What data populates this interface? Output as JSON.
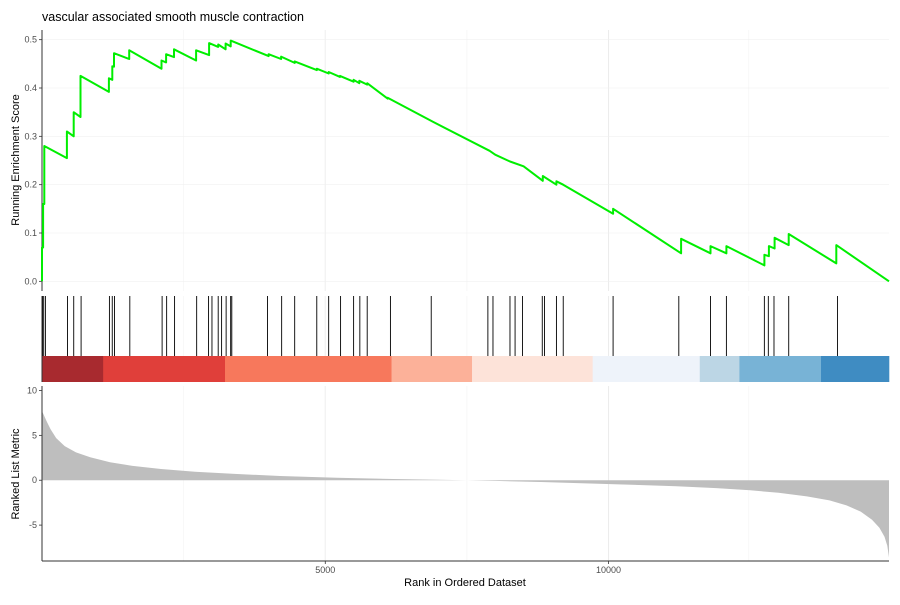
{
  "chart_data": {
    "type": "line",
    "title": "vascular associated smooth muscle contraction",
    "xlabel": "Rank in Ordered Dataset",
    "xlim": [
      0,
      14950
    ],
    "x_ticks": [
      {
        "value": 5000,
        "label": "5000"
      },
      {
        "value": 10000,
        "label": "10000"
      }
    ],
    "grid": "vertical",
    "panels": [
      {
        "name": "enrichment",
        "ylabel": "Running Enrichment Score",
        "ylim": [
          -0.02,
          0.52
        ],
        "y_ticks": [
          {
            "value": 0.0,
            "label": "0.0"
          },
          {
            "value": 0.1,
            "label": "0.1"
          },
          {
            "value": 0.2,
            "label": "0.2"
          },
          {
            "value": 0.3,
            "label": "0.3"
          },
          {
            "value": 0.4,
            "label": "0.4"
          },
          {
            "value": 0.5,
            "label": "0.5"
          }
        ],
        "line_color": "#00ee00",
        "series": [
          {
            "points": [
              [
                0,
                0.0
              ],
              [
                0,
                0.07
              ],
              [
                20,
                0.07
              ],
              [
                20,
                0.16
              ],
              [
                40,
                0.16
              ],
              [
                40,
                0.28
              ],
              [
                440,
                0.255
              ],
              [
                440,
                0.31
              ],
              [
                560,
                0.3
              ],
              [
                560,
                0.35
              ],
              [
                680,
                0.34
              ],
              [
                680,
                0.425
              ],
              [
                1180,
                0.392
              ],
              [
                1180,
                0.42
              ],
              [
                1240,
                0.417
              ],
              [
                1240,
                0.445
              ],
              [
                1270,
                0.444
              ],
              [
                1270,
                0.472
              ],
              [
                1540,
                0.46
              ],
              [
                1540,
                0.478
              ],
              [
                2110,
                0.44
              ],
              [
                2110,
                0.457
              ],
              [
                2190,
                0.453
              ],
              [
                2190,
                0.47
              ],
              [
                2330,
                0.464
              ],
              [
                2330,
                0.48
              ],
              [
                2720,
                0.457
              ],
              [
                2720,
                0.478
              ],
              [
                2950,
                0.468
              ],
              [
                2950,
                0.493
              ],
              [
                3110,
                0.485
              ],
              [
                3110,
                0.49
              ],
              [
                3240,
                0.48
              ],
              [
                3240,
                0.492
              ],
              [
                3330,
                0.486
              ],
              [
                3330,
                0.498
              ],
              [
                4000,
                0.466
              ],
              [
                4000,
                0.47
              ],
              [
                4220,
                0.46
              ],
              [
                4220,
                0.465
              ],
              [
                4460,
                0.452
              ],
              [
                4460,
                0.455
              ],
              [
                4850,
                0.437
              ],
              [
                4850,
                0.44
              ],
              [
                5060,
                0.43
              ],
              [
                5060,
                0.433
              ],
              [
                5260,
                0.423
              ],
              [
                5260,
                0.425
              ],
              [
                5500,
                0.413
              ],
              [
                5500,
                0.417
              ],
              [
                5600,
                0.41
              ],
              [
                5600,
                0.415
              ],
              [
                5740,
                0.407
              ],
              [
                5740,
                0.41
              ],
              [
                6100,
                0.378
              ],
              [
                6100,
                0.38
              ],
              [
                6900,
                0.33
              ],
              [
                7900,
                0.27
              ],
              [
                8000,
                0.262
              ],
              [
                8260,
                0.248
              ],
              [
                8500,
                0.238
              ],
              [
                8840,
                0.208
              ],
              [
                8840,
                0.218
              ],
              [
                9080,
                0.2
              ],
              [
                9080,
                0.207
              ],
              [
                9200,
                0.2
              ],
              [
                10080,
                0.14
              ],
              [
                10080,
                0.15
              ],
              [
                11280,
                0.058
              ],
              [
                11280,
                0.088
              ],
              [
                11800,
                0.058
              ],
              [
                11800,
                0.073
              ],
              [
                12080,
                0.058
              ],
              [
                12080,
                0.073
              ],
              [
                12750,
                0.033
              ],
              [
                12750,
                0.055
              ],
              [
                12830,
                0.052
              ],
              [
                12830,
                0.073
              ],
              [
                12930,
                0.068
              ],
              [
                12930,
                0.09
              ],
              [
                13180,
                0.075
              ],
              [
                13180,
                0.098
              ],
              [
                14020,
                0.037
              ],
              [
                14020,
                0.075
              ],
              [
                14950,
                0.0
              ]
            ]
          }
        ]
      },
      {
        "name": "hits",
        "hit_positions": [
          10,
          30,
          60,
          450,
          560,
          690,
          1190,
          1240,
          1280,
          1550,
          2120,
          2200,
          2340,
          2730,
          2940,
          3000,
          3110,
          3170,
          3250,
          3330,
          3350,
          3980,
          4230,
          4460,
          4850,
          5060,
          5270,
          5500,
          5610,
          5740,
          6150,
          6870,
          7870,
          7960,
          8260,
          8350,
          8480,
          8830,
          8870,
          9080,
          9200,
          10080,
          11240,
          11800,
          12080,
          12750,
          12820,
          12920,
          13180,
          14040
        ],
        "color_band": [
          {
            "from": 0,
            "to": 1080,
            "color": "#a82a2f"
          },
          {
            "from": 1080,
            "to": 3230,
            "color": "#e03f3a"
          },
          {
            "from": 3230,
            "to": 6170,
            "color": "#f7785c"
          },
          {
            "from": 6170,
            "to": 7590,
            "color": "#fcb199"
          },
          {
            "from": 7590,
            "to": 9720,
            "color": "#fde3d9"
          },
          {
            "from": 9720,
            "to": 11610,
            "color": "#eef3fa"
          },
          {
            "from": 11610,
            "to": 12310,
            "color": "#bcd6e5"
          },
          {
            "from": 12310,
            "to": 13750,
            "color": "#78b3d6"
          },
          {
            "from": 13750,
            "to": 14950,
            "color": "#3f8cc2"
          }
        ]
      },
      {
        "name": "ranked-metric",
        "type": "area",
        "ylabel": "Ranked List Metric",
        "ylim": [
          -9,
          10.5
        ],
        "y_ticks": [
          {
            "value": -5,
            "label": "-5"
          },
          {
            "value": 0,
            "label": "0"
          },
          {
            "value": 5,
            "label": "5"
          },
          {
            "value": 10,
            "label": "10"
          }
        ],
        "fill_color": "#bebebe",
        "series": [
          {
            "points": [
              [
                0,
                7.7
              ],
              [
                30,
                7.3
              ],
              [
                80,
                6.6
              ],
              [
                150,
                5.7
              ],
              [
                250,
                4.7
              ],
              [
                400,
                3.8
              ],
              [
                600,
                3.1
              ],
              [
                850,
                2.55
              ],
              [
                1200,
                2.0
              ],
              [
                1600,
                1.6
              ],
              [
                2100,
                1.25
              ],
              [
                2700,
                0.95
              ],
              [
                3400,
                0.7
              ],
              [
                4200,
                0.47
              ],
              [
                5200,
                0.28
              ],
              [
                6200,
                0.14
              ],
              [
                7000,
                0.05
              ],
              [
                7500,
                0.0
              ],
              [
                8000,
                -0.07
              ],
              [
                8800,
                -0.2
              ],
              [
                9600,
                -0.35
              ],
              [
                10400,
                -0.5
              ],
              [
                11200,
                -0.68
              ],
              [
                11900,
                -0.88
              ],
              [
                12500,
                -1.12
              ],
              [
                13000,
                -1.4
              ],
              [
                13500,
                -1.8
              ],
              [
                13900,
                -2.25
              ],
              [
                14200,
                -2.8
              ],
              [
                14450,
                -3.5
              ],
              [
                14650,
                -4.4
              ],
              [
                14780,
                -5.3
              ],
              [
                14870,
                -6.3
              ],
              [
                14920,
                -7.3
              ],
              [
                14950,
                -8.6
              ]
            ]
          }
        ]
      }
    ]
  }
}
